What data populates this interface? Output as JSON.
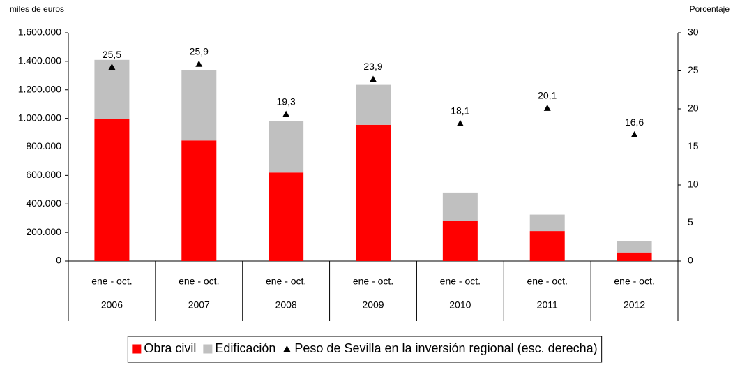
{
  "chart_data": {
    "type": "bar",
    "stacked": true,
    "y_axis_label": "miles de euros",
    "y2_axis_label": "Porcentaje",
    "period_label": "ene - oct.",
    "categories": [
      "2006",
      "2007",
      "2008",
      "2009",
      "2010",
      "2011",
      "2012"
    ],
    "series": [
      {
        "name": "Obra civil",
        "type": "bar",
        "color": "#ff0000",
        "values": [
          995000,
          845000,
          620000,
          955000,
          280000,
          210000,
          60000
        ]
      },
      {
        "name": "Edificación",
        "type": "bar",
        "color": "#c0c0c0",
        "values": [
          415000,
          495000,
          360000,
          280000,
          200000,
          115000,
          80000
        ]
      },
      {
        "name": "Peso de Sevilla en la inversión regional (esc. derecha)",
        "type": "scatter",
        "axis": "y2",
        "color": "#000000",
        "values": [
          25.5,
          25.9,
          19.3,
          23.9,
          18.1,
          20.1,
          16.6
        ],
        "value_labels": [
          "25,5",
          "25,9",
          "19,3",
          "23,9",
          "18,1",
          "20,1",
          "16,6"
        ]
      }
    ],
    "ylim": [
      0,
      1600000
    ],
    "yticks": [
      0,
      {
        "value": 200000,
        "label": "200.000"
      },
      {
        "value": 400000,
        "label": "400.000"
      },
      {
        "value": 600000,
        "label": "600.000"
      },
      {
        "value": 800000,
        "label": "800.000"
      },
      {
        "value": 1000000,
        "label": "1.000.000"
      },
      {
        "value": 1200000,
        "label": "1.200.000"
      },
      {
        "value": 1400000,
        "label": "1.400.000"
      },
      {
        "value": 1600000,
        "label": "1.600.000"
      }
    ],
    "y2lim": [
      0,
      30
    ],
    "y2ticks": [
      0,
      5,
      10,
      15,
      20,
      25,
      30
    ],
    "legend": "bottom"
  }
}
